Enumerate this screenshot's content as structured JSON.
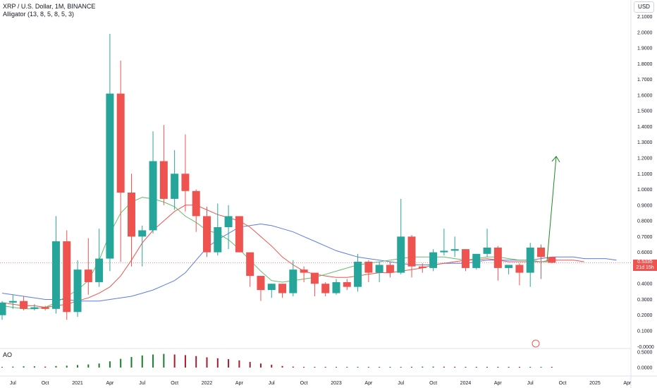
{
  "header": {
    "title": "XRP / U.S. Dollar, 1M, BINANCE",
    "subtitle": "Alligator (13, 8, 5, 8, 5, 3)",
    "ao_label": "AO",
    "currency": "USD",
    "last_price": "0.5335",
    "countdown": "21d 15h"
  },
  "chart_data": [
    {
      "type": "candlestick",
      "title": "XRP / U.S. Dollar, 1M, BINANCE",
      "scale": "linear",
      "ylim": [
        -0.02,
        2.12
      ],
      "yticks": [
        "2.1000",
        "2.0000",
        "1.9000",
        "1.8000",
        "1.7000",
        "1.6000",
        "1.5000",
        "1.4000",
        "1.3000",
        "1.2000",
        "1.1000",
        "1.0000",
        "0.9000",
        "0.8000",
        "0.7000",
        "0.6000",
        "0.4000",
        "0.3000",
        "0.2000",
        "0.1000",
        "-0.0000"
      ],
      "xticks": [
        "Jul",
        "Oct",
        "2021",
        "Apr",
        "Jul",
        "Oct",
        "2022",
        "Apr",
        "Jul",
        "Oct",
        "2023",
        "Apr",
        "Jul",
        "Oct",
        "2024",
        "Apr",
        "Jul",
        "Oct",
        "2025",
        "Apr"
      ],
      "x": [
        "2020-06",
        "2020-07",
        "2020-08",
        "2020-09",
        "2020-10",
        "2020-11",
        "2020-12",
        "2021-01",
        "2021-02",
        "2021-03",
        "2021-04",
        "2021-05",
        "2021-06",
        "2021-07",
        "2021-08",
        "2021-09",
        "2021-10",
        "2021-11",
        "2021-12",
        "2022-01",
        "2022-02",
        "2022-03",
        "2022-04",
        "2022-05",
        "2022-06",
        "2022-07",
        "2022-08",
        "2022-09",
        "2022-10",
        "2022-11",
        "2022-12",
        "2023-01",
        "2023-02",
        "2023-03",
        "2023-04",
        "2023-05",
        "2023-06",
        "2023-07",
        "2023-08",
        "2023-09",
        "2023-10",
        "2023-11",
        "2023-12",
        "2024-01",
        "2024-02",
        "2024-03",
        "2024-04",
        "2024-05",
        "2024-06",
        "2024-07",
        "2024-08",
        "2024-09"
      ],
      "ohlc": [
        [
          0.2,
          0.29,
          0.17,
          0.28
        ],
        [
          0.28,
          0.33,
          0.24,
          0.29
        ],
        [
          0.29,
          0.32,
          0.23,
          0.24
        ],
        [
          0.24,
          0.27,
          0.23,
          0.25
        ],
        [
          0.25,
          0.26,
          0.23,
          0.24
        ],
        [
          0.24,
          0.83,
          0.21,
          0.67
        ],
        [
          0.67,
          0.74,
          0.17,
          0.22
        ],
        [
          0.22,
          0.55,
          0.19,
          0.49
        ],
        [
          0.49,
          0.69,
          0.33,
          0.41
        ],
        [
          0.41,
          0.75,
          0.38,
          0.56
        ],
        [
          0.56,
          1.99,
          0.48,
          1.61
        ],
        [
          1.61,
          1.82,
          0.54,
          0.98
        ],
        [
          0.98,
          1.1,
          0.51,
          0.7
        ],
        [
          0.7,
          0.77,
          0.51,
          0.74
        ],
        [
          0.74,
          1.37,
          0.72,
          1.18
        ],
        [
          1.18,
          1.41,
          0.9,
          0.94
        ],
        [
          0.94,
          1.25,
          0.87,
          1.1
        ],
        [
          1.1,
          1.35,
          0.86,
          0.99
        ],
        [
          0.99,
          1.0,
          0.73,
          0.83
        ],
        [
          0.83,
          0.89,
          0.57,
          0.6
        ],
        [
          0.6,
          0.91,
          0.58,
          0.76
        ],
        [
          0.76,
          0.9,
          0.62,
          0.83
        ],
        [
          0.83,
          0.83,
          0.6,
          0.6
        ],
        [
          0.6,
          0.6,
          0.38,
          0.45
        ],
        [
          0.45,
          0.45,
          0.29,
          0.36
        ],
        [
          0.36,
          0.4,
          0.31,
          0.4
        ],
        [
          0.4,
          0.4,
          0.31,
          0.34
        ],
        [
          0.34,
          0.55,
          0.32,
          0.49
        ],
        [
          0.49,
          0.51,
          0.41,
          0.47
        ],
        [
          0.47,
          0.47,
          0.32,
          0.4
        ],
        [
          0.4,
          0.41,
          0.32,
          0.34
        ],
        [
          0.34,
          0.43,
          0.33,
          0.41
        ],
        [
          0.41,
          0.43,
          0.36,
          0.38
        ],
        [
          0.38,
          0.59,
          0.35,
          0.54
        ],
        [
          0.54,
          0.55,
          0.41,
          0.47
        ],
        [
          0.47,
          0.54,
          0.41,
          0.52
        ],
        [
          0.52,
          0.54,
          0.44,
          0.47
        ],
        [
          0.47,
          0.94,
          0.46,
          0.7
        ],
        [
          0.7,
          0.71,
          0.44,
          0.51
        ],
        [
          0.51,
          0.53,
          0.47,
          0.5
        ],
        [
          0.5,
          0.62,
          0.48,
          0.6
        ],
        [
          0.6,
          0.75,
          0.58,
          0.61
        ],
        [
          0.61,
          0.7,
          0.57,
          0.62
        ],
        [
          0.62,
          0.62,
          0.48,
          0.5
        ],
        [
          0.5,
          0.59,
          0.49,
          0.59
        ],
        [
          0.59,
          0.75,
          0.57,
          0.63
        ],
        [
          0.63,
          0.64,
          0.42,
          0.5
        ],
        [
          0.5,
          0.52,
          0.46,
          0.52
        ],
        [
          0.52,
          0.53,
          0.39,
          0.47
        ],
        [
          0.47,
          0.66,
          0.38,
          0.63
        ],
        [
          0.63,
          0.65,
          0.43,
          0.57
        ],
        [
          0.57,
          0.57,
          0.53,
          0.5335
        ]
      ],
      "alligator": {
        "jaw": [
          0.34,
          0.33,
          0.32,
          0.31,
          0.3,
          0.3,
          0.3,
          0.29,
          0.29,
          0.29,
          0.3,
          0.31,
          0.32,
          0.34,
          0.36,
          0.39,
          0.42,
          0.47,
          0.55,
          0.63,
          0.68,
          0.72,
          0.76,
          0.77,
          0.78,
          0.77,
          0.75,
          0.73,
          0.7,
          0.67,
          0.64,
          0.61,
          0.59,
          0.57,
          0.56,
          0.55,
          0.54,
          0.53,
          0.52,
          0.52,
          0.52,
          0.53,
          0.53,
          0.53,
          0.54,
          0.55,
          0.55,
          0.55,
          0.55,
          0.55,
          0.56,
          0.57,
          0.57,
          0.57,
          0.56,
          0.56,
          0.56,
          0.55
        ],
        "teeth": [
          0.28,
          0.27,
          0.26,
          0.26,
          0.25,
          0.26,
          0.27,
          0.29,
          0.31,
          0.34,
          0.38,
          0.45,
          0.55,
          0.66,
          0.74,
          0.8,
          0.86,
          0.9,
          0.9,
          0.87,
          0.84,
          0.82,
          0.8,
          0.76,
          0.7,
          0.64,
          0.57,
          0.52,
          0.48,
          0.46,
          0.45,
          0.44,
          0.44,
          0.45,
          0.46,
          0.47,
          0.47,
          0.48,
          0.49,
          0.5,
          0.52,
          0.53,
          0.54,
          0.55,
          0.55,
          0.56,
          0.55,
          0.54,
          0.54,
          0.54,
          0.54,
          0.55,
          0.55,
          0.55,
          0.54
        ],
        "lips": [
          0.26,
          0.25,
          0.24,
          0.24,
          0.25,
          0.28,
          0.32,
          0.36,
          0.42,
          0.55,
          0.72,
          0.85,
          0.92,
          0.95,
          0.94,
          0.92,
          0.89,
          0.83,
          0.79,
          0.74,
          0.72,
          0.68,
          0.62,
          0.55,
          0.48,
          0.42,
          0.41,
          0.42,
          0.43,
          0.44,
          0.46,
          0.48,
          0.5,
          0.52,
          0.53,
          0.54,
          0.55,
          0.56,
          0.57,
          0.57,
          0.57,
          0.57,
          0.56,
          0.55,
          0.56,
          0.57,
          0.57,
          0.56,
          0.55,
          0.55,
          0.54,
          0.54
        ],
        "colors": {
          "jaw": "#5b7ce5",
          "teeth": "#ef5350",
          "lips": "#66bb6a"
        }
      },
      "colors": {
        "up": "#26a69a",
        "down": "#ef5350",
        "arrow": "#1b8a2a"
      }
    },
    {
      "type": "bar",
      "title": "AO",
      "yticks": [
        "0.5000",
        "0.0000"
      ],
      "values": [
        0.02,
        0.03,
        0.04,
        0.04,
        0.03,
        0.05,
        0.06,
        0.08,
        0.1,
        0.13,
        0.2,
        0.28,
        0.34,
        0.39,
        0.42,
        0.44,
        0.42,
        0.4,
        0.37,
        0.33,
        0.3,
        0.27,
        0.23,
        0.18,
        0.13,
        0.09,
        0.05,
        0.03,
        0.02,
        0.015,
        0.01,
        0.01,
        0.01,
        0.01,
        0.01,
        0.012,
        0.015,
        0.02,
        0.025,
        0.03,
        0.03,
        0.028,
        0.025,
        0.02,
        0.018,
        0.016,
        0.015,
        0.014,
        0.012,
        0.012,
        0.012,
        0.01
      ],
      "colors": {
        "up": "#1b7d2c",
        "down": "#a01e2e"
      }
    }
  ]
}
